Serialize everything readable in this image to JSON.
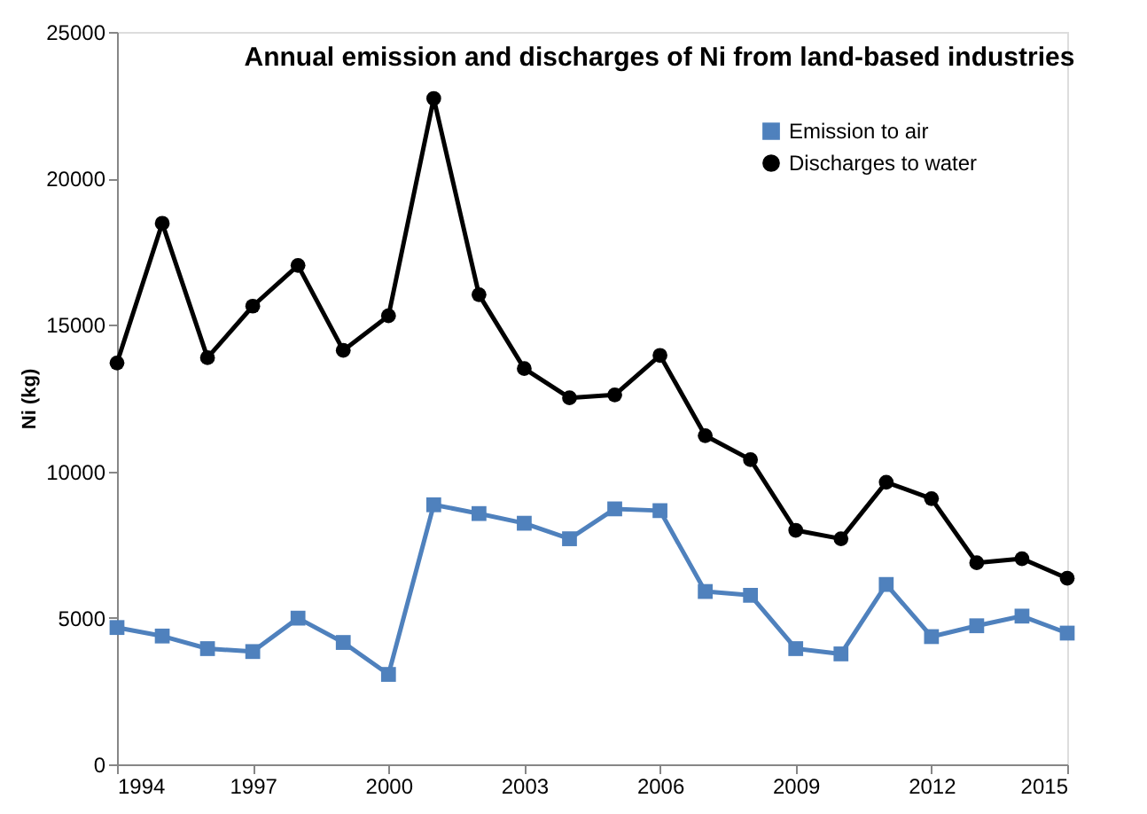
{
  "chart_data": {
    "type": "line",
    "title": "Annual emission and discharges of Ni from land-based industries",
    "ylabel": "Ni (kg)",
    "x": [
      1994,
      1995,
      1996,
      1997,
      1998,
      1999,
      2000,
      2001,
      2002,
      2003,
      2004,
      2005,
      2006,
      2007,
      2008,
      2009,
      2010,
      2011,
      2012,
      2013,
      2014,
      2015
    ],
    "series": [
      {
        "name": "Emission to air",
        "color": "#4f81bd",
        "marker": "square",
        "values": [
          4670,
          4380,
          3950,
          3850,
          4990,
          4160,
          3070,
          8860,
          8560,
          8230,
          7700,
          8720,
          8660,
          5900,
          5770,
          3950,
          3770,
          6140,
          4360,
          4730,
          5060,
          4480
        ]
      },
      {
        "name": "Discharges to water",
        "color": "#000000",
        "marker": "circle",
        "values": [
          13700,
          18470,
          13880,
          15640,
          17030,
          14130,
          15310,
          22730,
          16030,
          13510,
          12510,
          12610,
          13960,
          11220,
          10400,
          7990,
          7700,
          9630,
          9070,
          6880,
          7020,
          6350
        ]
      }
    ],
    "xlim": [
      1994,
      2015
    ],
    "xticks": [
      1994,
      1997,
      2000,
      2003,
      2006,
      2009,
      2012,
      2015
    ],
    "ylim": [
      0,
      25000
    ],
    "yticks": [
      0,
      5000,
      10000,
      15000,
      20000,
      25000
    ],
    "grid": false,
    "legend": "top right",
    "line_style": "solid"
  }
}
